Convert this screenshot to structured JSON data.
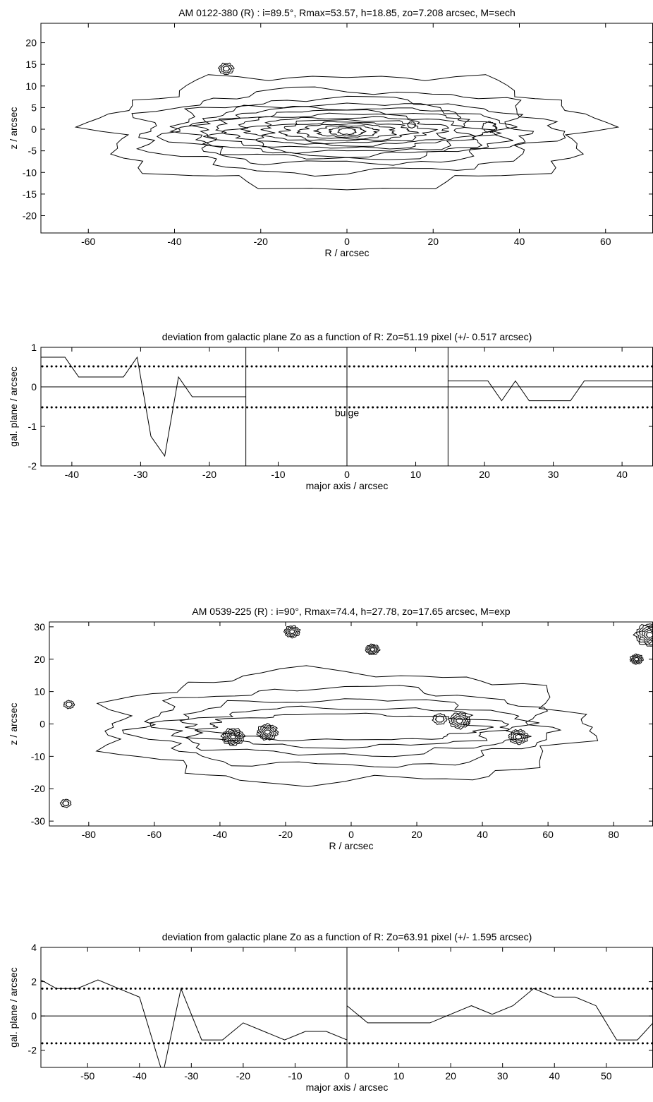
{
  "chart_data": [
    {
      "type": "contour",
      "title": "AM 0122-380 (R) :    i=89.5°, Rmax=53.57, h=18.85, zo=7.208 arcsec, M=sech",
      "xlabel": "R   /   arcsec",
      "ylabel": "z   /   arcsec",
      "xlim": [
        -71,
        71
      ],
      "ylim": [
        -24,
        24.5
      ],
      "xticks": [
        -60,
        -40,
        -20,
        0,
        20,
        40,
        60
      ],
      "yticks": [
        -20,
        -15,
        -10,
        -5,
        0,
        5,
        10,
        15,
        20
      ],
      "center": [
        0,
        -0.5
      ],
      "contours": [
        {
          "a": 57,
          "b": 13
        },
        {
          "a": 48,
          "b": 9.5
        },
        {
          "a": 41,
          "b": 7.5
        },
        {
          "a": 37,
          "b": 6.3
        },
        {
          "a": 34,
          "b": 5.5
        },
        {
          "a": 31,
          "b": 4.7
        },
        {
          "a": 27,
          "b": 3.9
        },
        {
          "a": 23,
          "b": 3.2
        },
        {
          "a": 19,
          "b": 2.6
        },
        {
          "a": 15,
          "b": 2.1
        },
        {
          "a": 11,
          "b": 1.7
        },
        {
          "a": 7,
          "b": 1.3
        },
        {
          "a": 4,
          "b": 1.0
        },
        {
          "a": 2,
          "b": 0.7
        }
      ],
      "blobs": [
        {
          "x": -28,
          "y": 14,
          "r": 1.3,
          "n": 3
        },
        {
          "x": 33,
          "y": 0.5,
          "r": 1.2,
          "n": 1
        },
        {
          "x": 15,
          "y": 1,
          "r": 0.7,
          "n": 1
        }
      ]
    },
    {
      "type": "line",
      "title": "deviation from galactic plane Zo as a function of R:  Zo=51.19 pixel (+/- 0.517 arcsec)",
      "xlabel": "major axis   /   arcsec",
      "ylabel": "gal. plane  /  arcsec",
      "xlim": [
        -44.5,
        44.5
      ],
      "ylim": [
        -2,
        1
      ],
      "xticks": [
        -40,
        -30,
        -20,
        -10,
        0,
        10,
        20,
        30,
        40
      ],
      "yticks": [
        -2,
        -1,
        0,
        1
      ],
      "band": 0.517,
      "vlines": [
        -14.7,
        0,
        14.7
      ],
      "annotation": {
        "text": "bulge",
        "x": 0,
        "y": -0.65
      },
      "series": [
        {
          "x": [
            -44.5,
            -41,
            -39,
            -37,
            -35,
            -32.5,
            -30.5,
            -28.5,
            -26.5,
            -24.5,
            -22.5,
            -14.7
          ],
          "y": [
            0.75,
            0.75,
            0.25,
            0.25,
            0.25,
            0.25,
            0.75,
            -1.25,
            -1.75,
            0.25,
            -0.25,
            -0.25
          ]
        },
        {
          "x": [
            14.7,
            20.5,
            22.5,
            24.5,
            26.5,
            32.5,
            34.5,
            44.5
          ],
          "y": [
            0.15,
            0.15,
            -0.35,
            0.15,
            -0.35,
            -0.35,
            0.15,
            0.15
          ]
        }
      ]
    },
    {
      "type": "contour",
      "title": "AM 0539-225 (R) :    i=90°, Rmax=74.4, h=27.78, zo=17.65 arcsec, M=exp",
      "xlabel": "R   /   arcsec",
      "ylabel": "z   /   arcsec",
      "xlim": [
        -92,
        92
      ],
      "ylim": [
        -31.5,
        31.5
      ],
      "xticks": [
        -80,
        -60,
        -40,
        -20,
        0,
        20,
        40,
        60,
        80
      ],
      "yticks": [
        -30,
        -20,
        -10,
        0,
        10,
        20,
        30
      ],
      "center": [
        -2,
        -1
      ],
      "contours": [
        {
          "a": 73,
          "b": 17
        },
        {
          "a": 62,
          "b": 12
        },
        {
          "a": 55,
          "b": 8.5
        },
        {
          "a": 48,
          "b": 6
        },
        {
          "a": 42,
          "b": 4
        }
      ],
      "blobs": [
        {
          "x": -36,
          "y": -4,
          "r": 2.6,
          "n": 6
        },
        {
          "x": -25.5,
          "y": -2.5,
          "r": 2.4,
          "n": 5
        },
        {
          "x": 33,
          "y": 1,
          "r": 2.4,
          "n": 4
        },
        {
          "x": 27,
          "y": 1.5,
          "r": 1.6,
          "n": 2
        },
        {
          "x": 51,
          "y": -4,
          "r": 2.2,
          "n": 4
        },
        {
          "x": 6.5,
          "y": 23,
          "r": 1.6,
          "n": 4
        },
        {
          "x": -18,
          "y": 28.5,
          "r": 1.8,
          "n": 4
        },
        {
          "x": 87,
          "y": 20,
          "r": 1.5,
          "n": 4
        },
        {
          "x": 91,
          "y": 27.5,
          "r": 3.4,
          "n": 6
        },
        {
          "x": -86,
          "y": 6,
          "r": 1.2,
          "n": 2
        },
        {
          "x": -87,
          "y": -24.5,
          "r": 1.2,
          "n": 2
        }
      ]
    },
    {
      "type": "line",
      "title": "deviation from galactic plane Zo as a function of R:  Zo=63.91 pixel (+/- 1.595 arcsec)",
      "xlabel": "major axis   /   arcsec",
      "ylabel": "gal. plane  /  arcsec",
      "xlim": [
        -59,
        59
      ],
      "ylim": [
        -3,
        4
      ],
      "xticks": [
        -50,
        -40,
        -30,
        -20,
        -10,
        0,
        10,
        20,
        30,
        40,
        50
      ],
      "yticks": [
        -2,
        0,
        2,
        4
      ],
      "band": 1.595,
      "vlines": [
        0
      ],
      "series": [
        {
          "x": [
            -59,
            -56,
            -52,
            -48,
            -44,
            -40,
            -36,
            -35.5,
            -32,
            -28,
            -24,
            -20,
            -16,
            -12,
            -8,
            -4,
            0
          ],
          "y": [
            2.1,
            1.6,
            1.6,
            2.1,
            1.6,
            1.1,
            -2.9,
            -3.4,
            1.6,
            -1.4,
            -1.4,
            -0.4,
            -0.9,
            -1.4,
            -0.9,
            -0.9,
            -1.4
          ]
        },
        {
          "x": [
            0,
            4,
            8,
            12,
            16,
            20,
            24,
            28,
            32,
            36,
            40,
            44,
            48,
            52,
            56,
            59
          ],
          "y": [
            0.6,
            -0.4,
            -0.4,
            -0.4,
            -0.4,
            0.1,
            0.6,
            0.1,
            0.6,
            1.6,
            1.1,
            1.1,
            0.6,
            -1.4,
            -1.4,
            -0.4
          ]
        }
      ]
    }
  ]
}
